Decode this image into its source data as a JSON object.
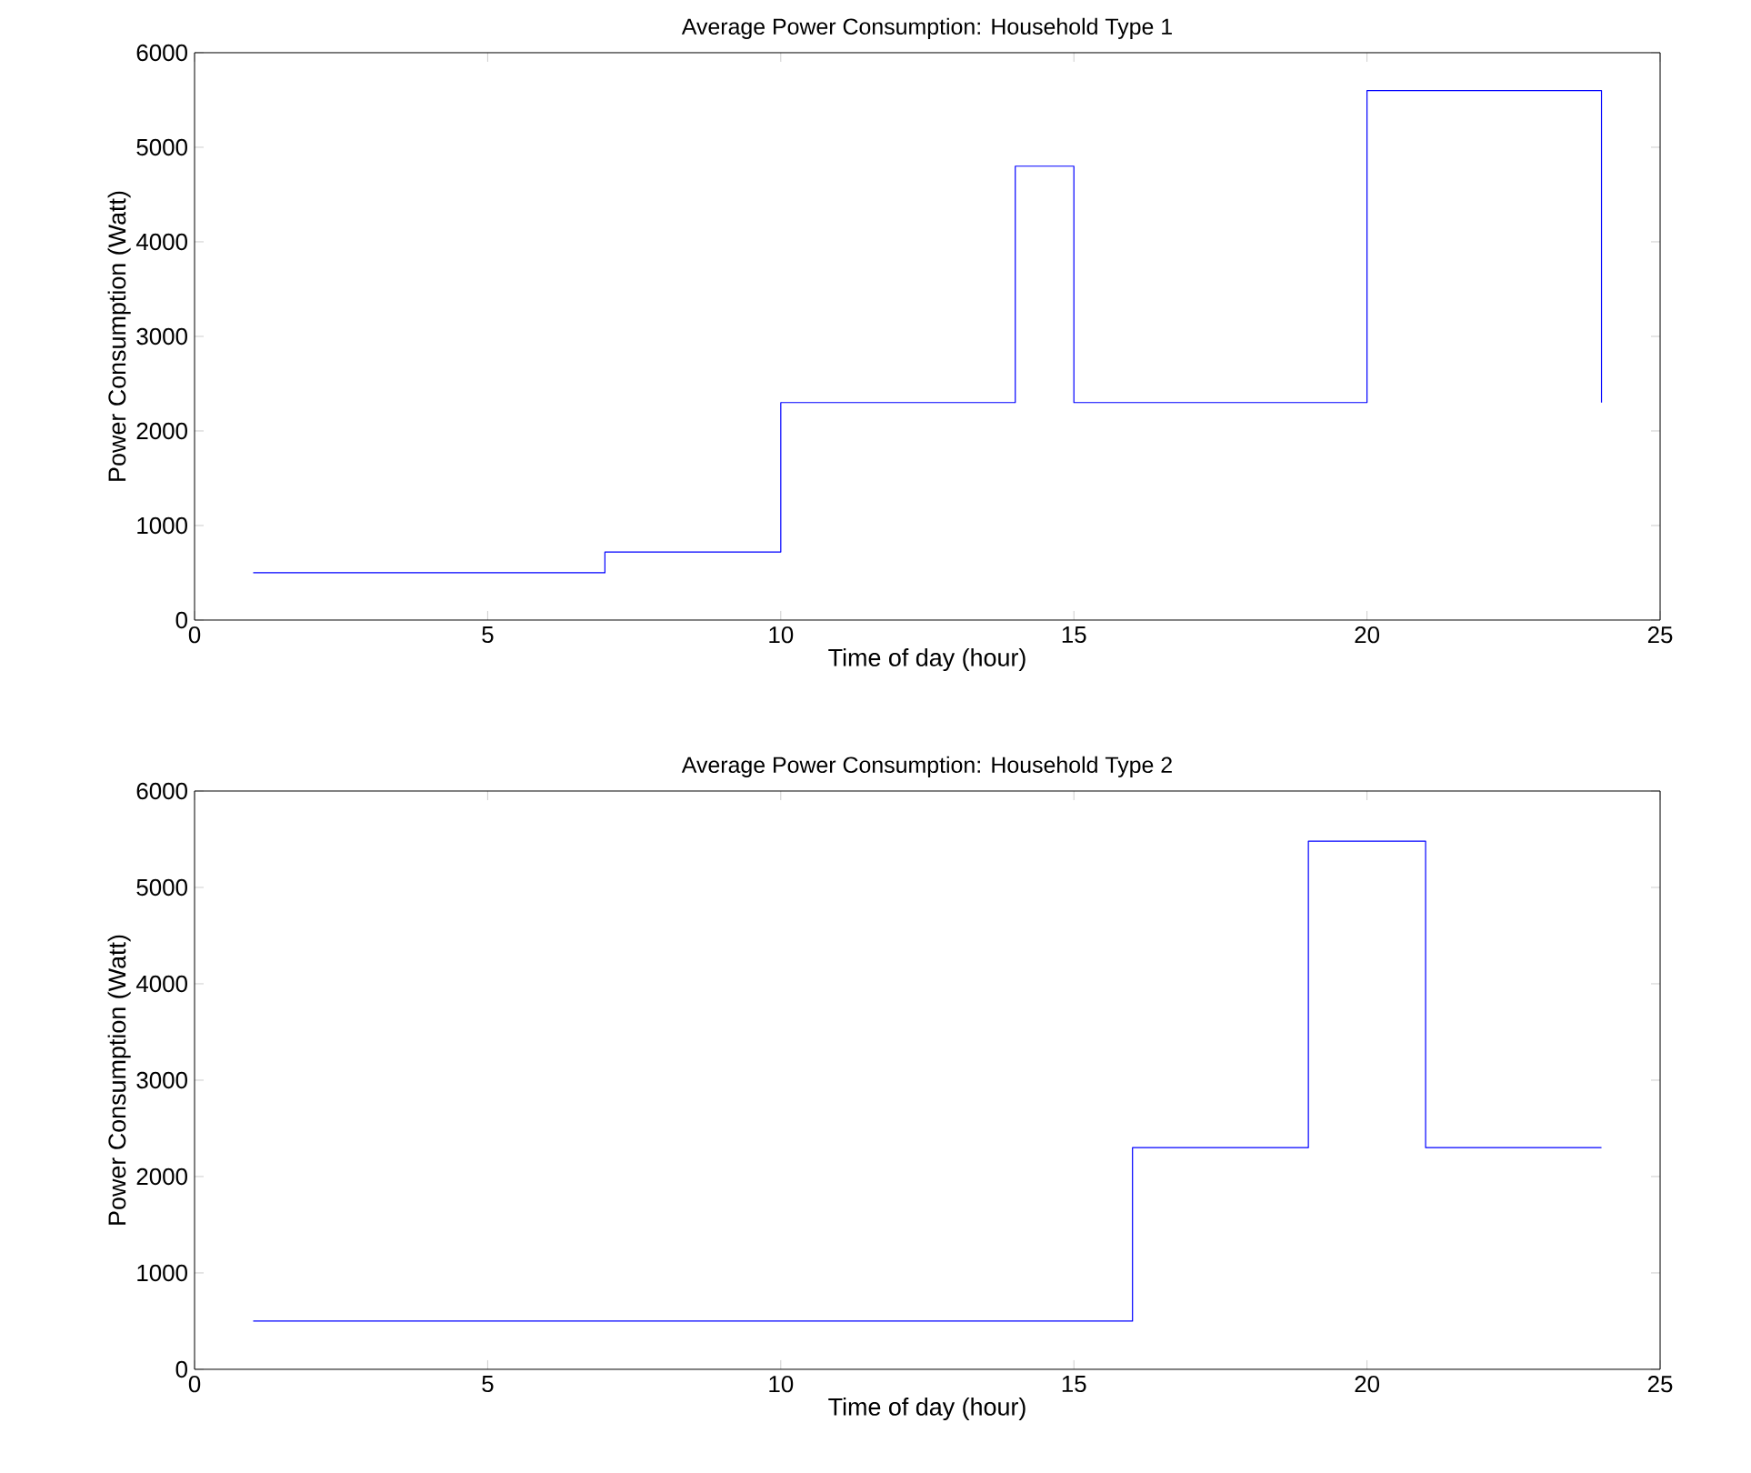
{
  "chart_data": [
    {
      "type": "step",
      "title": "Average Power Consumption: Household Type 1",
      "xlabel": "Time of day (hour)",
      "ylabel": "Power Consumption (Watt)",
      "color": "#0000ff",
      "x": [
        1,
        7,
        10,
        14,
        15,
        20,
        24
      ],
      "values": [
        500,
        720,
        2300,
        4800,
        2300,
        5600,
        2300
      ],
      "xlim": [
        0,
        25
      ],
      "ylim": [
        0,
        6000
      ],
      "xticks": [
        0,
        5,
        10,
        15,
        20,
        25
      ],
      "yticks": [
        0,
        1000,
        2000,
        3000,
        4000,
        5000,
        6000
      ]
    },
    {
      "type": "step",
      "title": "Average Power Consumption: Household Type 2",
      "xlabel": "Time of day (hour)",
      "ylabel": "Power Consumption (Watt)",
      "color": "#0000ff",
      "x": [
        1,
        16,
        19,
        21,
        24
      ],
      "values": [
        500,
        2300,
        5480,
        2300,
        2300
      ],
      "xlim": [
        0,
        25
      ],
      "ylim": [
        0,
        6000
      ],
      "xticks": [
        0,
        5,
        10,
        15,
        20,
        25
      ],
      "yticks": [
        0,
        1000,
        2000,
        3000,
        4000,
        5000,
        6000
      ]
    }
  ]
}
